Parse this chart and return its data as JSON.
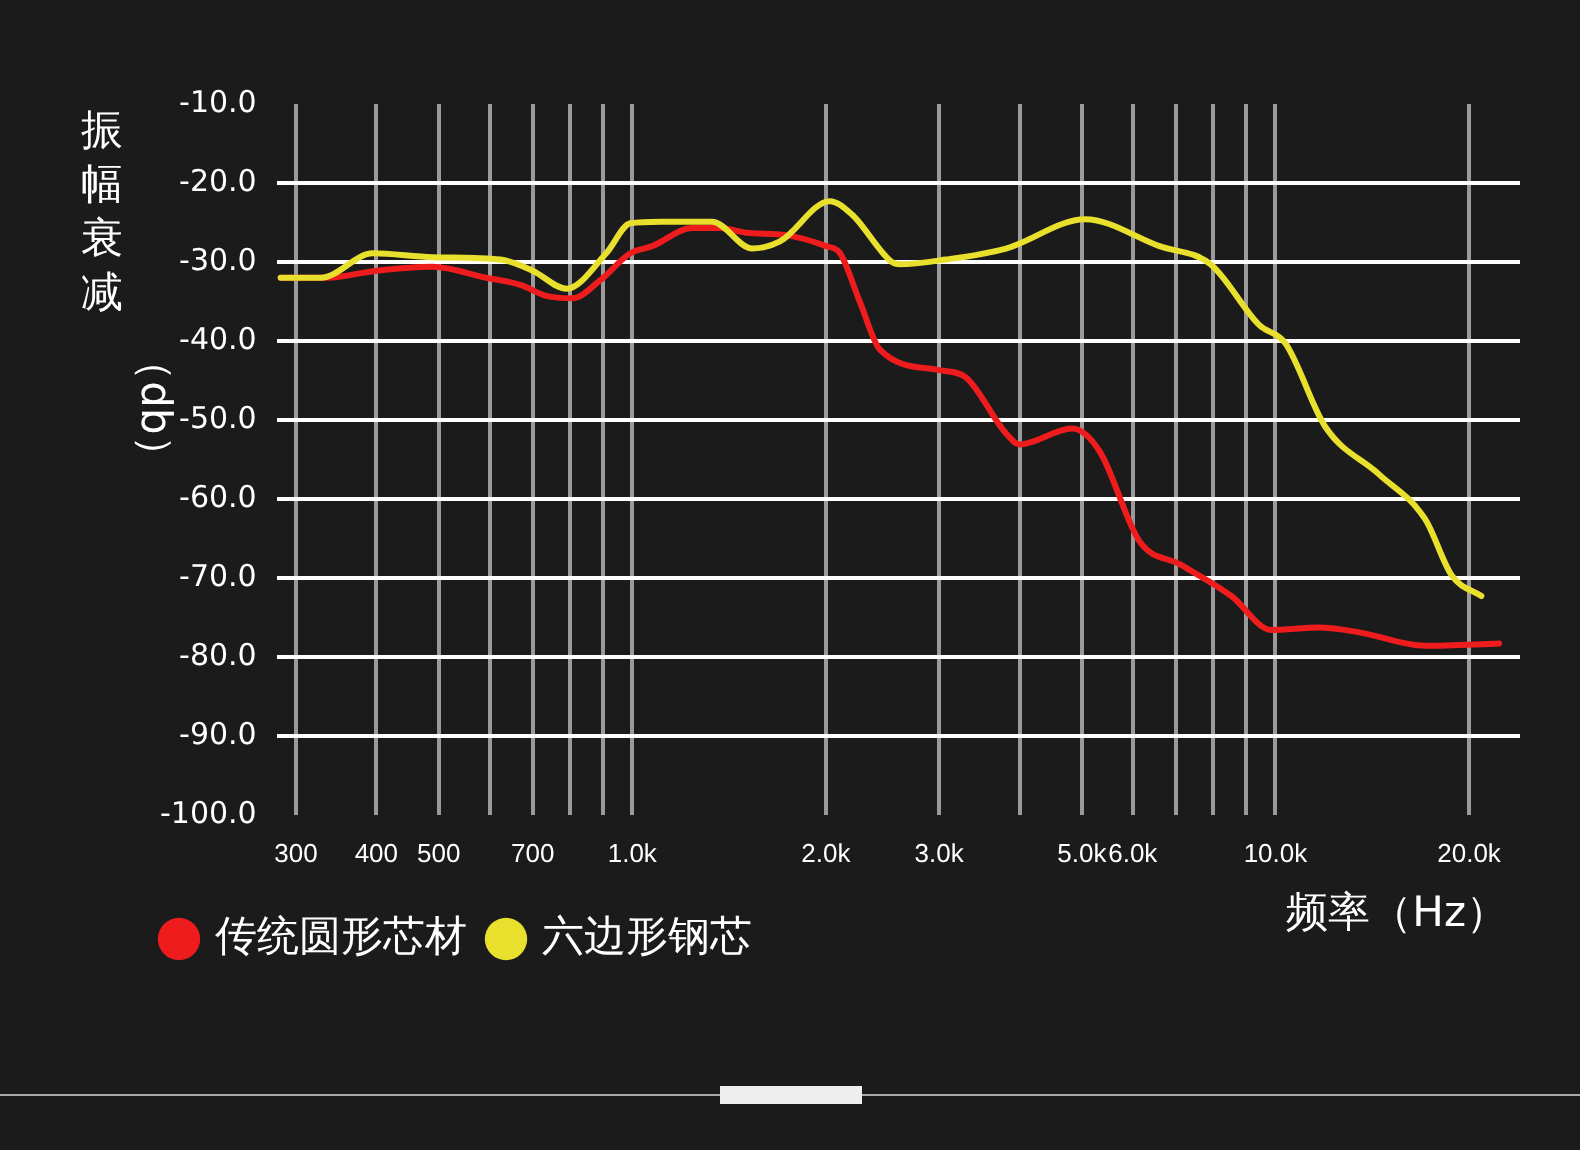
{
  "chart_data": {
    "type": "line",
    "ylabel": "振幅衰减（db）",
    "xlabel": "频率（Hz）",
    "xlim": [
      280,
      24000
    ],
    "ylim": [
      -100,
      -10
    ],
    "xticks": [
      300,
      400,
      500,
      {
        "value": 600,
        "label": null
      },
      700,
      {
        "value": 800,
        "label": null
      },
      {
        "value": 900,
        "label": null
      },
      {
        "value": 1000,
        "label": "1.0k"
      },
      {
        "value": 2000,
        "label": "2.0k"
      },
      {
        "value": 3000,
        "label": "3.0k"
      },
      {
        "value": 4000,
        "label": null
      },
      {
        "value": 5000,
        "label": "5.0k"
      },
      {
        "value": 6000,
        "label": "6.0k"
      },
      {
        "value": 7000,
        "label": null
      },
      {
        "value": 8000,
        "label": null
      },
      {
        "value": 9000,
        "label": null
      },
      {
        "value": 10000,
        "label": "10.0k"
      },
      {
        "value": 20000,
        "label": "20.0k"
      }
    ],
    "yticks": [
      {
        "value": -10,
        "label": "-10.0"
      },
      {
        "value": -20,
        "label": "-20.0"
      },
      {
        "value": -30,
        "label": "-30.0"
      },
      {
        "value": -40,
        "label": "-40.0"
      },
      {
        "value": -50,
        "label": "-50.0"
      },
      {
        "value": -60,
        "label": "-60.0"
      },
      {
        "value": -70,
        "label": "-70.0"
      },
      {
        "value": -80,
        "label": "-80.0"
      },
      {
        "value": -90,
        "label": "-90.0"
      },
      {
        "value": -100,
        "label": "-100.0"
      }
    ],
    "log": "x",
    "grid": true,
    "legend": "bottom left",
    "marker": "none",
    "line_style": "solid",
    "series": [
      {
        "name": "传统圆形芯材",
        "color": "#ee1c1c",
        "x": [
          284,
          335,
          400,
          489,
          593,
          670,
          735,
          807,
          892,
          993,
          1074,
          1239,
          1370,
          1503,
          1734,
          2000,
          2104,
          2260,
          2427,
          3000,
          3300,
          3810,
          4000,
          4830,
          5330,
          6150,
          7110,
          8540,
          9850,
          11700,
          13500,
          17100,
          22270
        ],
        "values": [
          -32,
          -32,
          -31.1,
          -30.6,
          -32,
          -32.9,
          -34.3,
          -34.6,
          -32.3,
          -28.9,
          -28,
          -25.7,
          -25.7,
          -26.3,
          -26.6,
          -28,
          -28.9,
          -35.1,
          -41.1,
          -43.7,
          -44.6,
          -51.7,
          -53.1,
          -51.1,
          -54,
          -65.4,
          -68.3,
          -72.3,
          -76.6,
          -76.3,
          -76.9,
          -78.6,
          -78.3
        ]
      },
      {
        "name": "六边形钢芯",
        "color": "#e8e02c",
        "x": [
          284,
          328,
          395,
          489,
          624,
          700,
          790,
          911,
          993,
          1105,
          1331,
          1536,
          1697,
          2029,
          2196,
          2531,
          2605,
          3070,
          3810,
          5060,
          6600,
          7930,
          9440,
          10360,
          11960,
          14490,
          17100,
          18800,
          20900
        ],
        "values": [
          -32,
          -32,
          -28.9,
          -29.4,
          -29.7,
          -31.1,
          -33.4,
          -28.9,
          -25.1,
          -24.9,
          -24.9,
          -28.3,
          -27.4,
          -22.3,
          -24,
          -30,
          -30.3,
          -29.7,
          -28.3,
          -24.6,
          -28,
          -30.3,
          -38,
          -40.3,
          -50.9,
          -56.9,
          -62.6,
          -69.7,
          -72.3
        ]
      }
    ]
  }
}
